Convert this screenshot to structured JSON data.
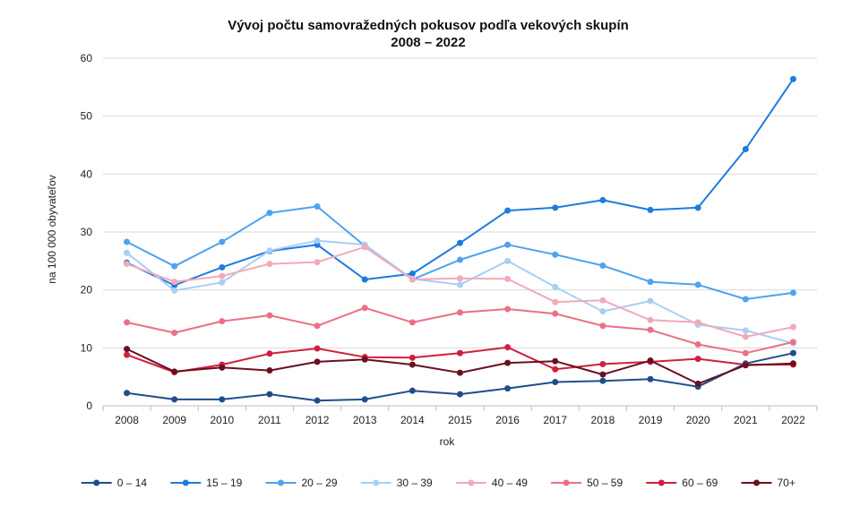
{
  "chart_data": {
    "type": "line",
    "title": "Vývoj počtu samovražedných pokusov  podľa vekových skupín",
    "subtitle": "2008 – 2022",
    "xlabel": "rok",
    "ylabel": "na 100 000 obyvateľov",
    "ylim": [
      0,
      60
    ],
    "yticks": [
      0,
      10,
      20,
      30,
      40,
      50,
      60
    ],
    "grid": "horizontal",
    "legend": "bottom",
    "categories": [
      "2008",
      "2009",
      "2010",
      "2011",
      "2012",
      "2013",
      "2014",
      "2015",
      "2016",
      "2017",
      "2018",
      "2019",
      "2020",
      "2021",
      "2022"
    ],
    "series": [
      {
        "name": "0 – 14",
        "color": "#1f4e8c",
        "values": [
          2.2,
          1.1,
          1.1,
          2.0,
          0.9,
          1.1,
          2.6,
          2.0,
          3.0,
          4.1,
          4.3,
          4.6,
          3.3,
          7.3,
          9.1
        ]
      },
      {
        "name": "15 – 19",
        "color": "#1e7be0",
        "values": [
          24.7,
          20.8,
          23.9,
          26.7,
          27.8,
          21.8,
          22.8,
          28.1,
          33.7,
          34.2,
          35.5,
          33.8,
          34.2,
          44.3,
          56.4
        ]
      },
      {
        "name": "20 – 29",
        "color": "#4da3f0",
        "values": [
          28.3,
          24.1,
          28.3,
          33.3,
          34.4,
          27.6,
          21.8,
          25.2,
          27.8,
          26.1,
          24.2,
          21.4,
          20.9,
          18.4,
          19.5
        ]
      },
      {
        "name": "30 – 39",
        "color": "#a6cff5",
        "values": [
          26.4,
          19.9,
          21.3,
          26.8,
          28.5,
          27.8,
          21.9,
          20.9,
          25.0,
          20.5,
          16.3,
          18.1,
          14.0,
          13.0,
          10.8
        ]
      },
      {
        "name": "40 – 49",
        "color": "#f4a9b8",
        "values": [
          24.5,
          21.4,
          22.4,
          24.5,
          24.8,
          27.4,
          21.8,
          22.0,
          21.9,
          17.9,
          18.2,
          14.8,
          14.4,
          11.9,
          13.6
        ]
      },
      {
        "name": "50 – 59",
        "color": "#ec6f86",
        "values": [
          14.4,
          12.6,
          14.6,
          15.6,
          13.8,
          16.9,
          14.4,
          16.1,
          16.7,
          15.9,
          13.8,
          13.1,
          10.6,
          9.1,
          11.0
        ]
      },
      {
        "name": "60 – 69",
        "color": "#d0203c",
        "values": [
          8.8,
          5.8,
          7.1,
          9.0,
          9.9,
          8.4,
          8.3,
          9.1,
          10.1,
          6.3,
          7.2,
          7.6,
          8.1,
          7.1,
          7.1
        ]
      },
      {
        "name": "70+",
        "color": "#6b0f1f",
        "values": [
          9.8,
          5.9,
          6.6,
          6.1,
          7.6,
          8.0,
          7.1,
          5.7,
          7.4,
          7.7,
          5.4,
          7.8,
          3.8,
          7.0,
          7.3
        ]
      }
    ]
  }
}
